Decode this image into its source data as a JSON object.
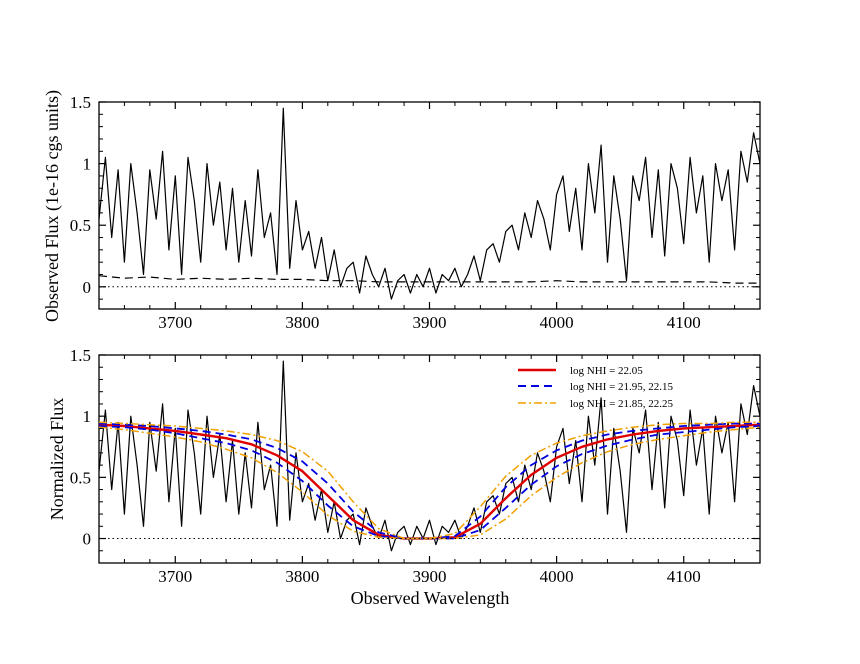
{
  "chart_data": [
    {
      "type": "line",
      "id": "top",
      "title": "",
      "xlabel": "",
      "ylabel": "Observed Flux (1e-16 cgs units)",
      "xlim": [
        3640,
        4160
      ],
      "ylim": [
        -0.18,
        1.5
      ],
      "xticks": [
        3700,
        3800,
        3900,
        4000,
        4100
      ],
      "xtick_labels": [
        "3700",
        "3800",
        "3900",
        "4000",
        "4100"
      ],
      "yticks": [
        0,
        0.5,
        1,
        1.5
      ],
      "ytick_labels": [
        "0",
        "0.5",
        "1",
        "1.5"
      ],
      "grid": false,
      "series": [
        {
          "name": "Observed flux",
          "style": "solid",
          "color": "#000000",
          "x": [
            3640,
            3645,
            3650,
            3655,
            3660,
            3665,
            3670,
            3675,
            3680,
            3685,
            3690,
            3695,
            3700,
            3705,
            3710,
            3715,
            3720,
            3725,
            3730,
            3735,
            3740,
            3745,
            3750,
            3755,
            3760,
            3765,
            3770,
            3775,
            3780,
            3785,
            3790,
            3795,
            3800,
            3805,
            3810,
            3815,
            3820,
            3825,
            3830,
            3835,
            3840,
            3845,
            3850,
            3855,
            3860,
            3865,
            3870,
            3875,
            3880,
            3885,
            3890,
            3895,
            3900,
            3905,
            3910,
            3915,
            3920,
            3925,
            3930,
            3935,
            3940,
            3945,
            3950,
            3955,
            3960,
            3965,
            3970,
            3975,
            3980,
            3985,
            3990,
            3995,
            4000,
            4005,
            4010,
            4015,
            4020,
            4025,
            4030,
            4035,
            4040,
            4045,
            4050,
            4055,
            4060,
            4065,
            4070,
            4075,
            4080,
            4085,
            4090,
            4095,
            4100,
            4105,
            4110,
            4115,
            4120,
            4125,
            4130,
            4135,
            4140,
            4145,
            4150,
            4155,
            4160
          ],
          "y": [
            0.55,
            1.05,
            0.4,
            0.95,
            0.2,
            1.0,
            0.6,
            0.1,
            0.95,
            0.55,
            1.1,
            0.3,
            0.9,
            0.1,
            1.05,
            0.7,
            0.2,
            1.0,
            0.5,
            0.85,
            0.3,
            0.8,
            0.2,
            0.7,
            0.25,
            0.95,
            0.4,
            0.6,
            0.1,
            1.45,
            0.15,
            0.7,
            0.3,
            0.45,
            0.15,
            0.4,
            0.05,
            0.3,
            0.0,
            0.15,
            0.2,
            -0.05,
            0.25,
            0.1,
            0.0,
            0.15,
            -0.1,
            0.05,
            0.1,
            -0.05,
            0.1,
            0.0,
            0.15,
            -0.05,
            0.1,
            0.05,
            0.15,
            0.0,
            0.1,
            0.25,
            0.05,
            0.3,
            0.35,
            0.2,
            0.45,
            0.5,
            0.3,
            0.6,
            0.4,
            0.7,
            0.55,
            0.3,
            0.75,
            0.9,
            0.45,
            0.8,
            0.3,
            1.0,
            0.6,
            1.15,
            0.2,
            0.9,
            0.55,
            0.05,
            0.9,
            0.7,
            1.05,
            0.4,
            0.95,
            0.25,
            1.0,
            0.8,
            0.35,
            1.05,
            0.6,
            0.9,
            0.2,
            1.0,
            0.7,
            0.95,
            0.3,
            1.1,
            0.85,
            1.25,
            1.0
          ]
        },
        {
          "name": "Error",
          "style": "dashed",
          "color": "#000000",
          "x": [
            3640,
            3660,
            3680,
            3700,
            3720,
            3740,
            3760,
            3780,
            3800,
            3820,
            3840,
            3860,
            3880,
            3900,
            3920,
            3940,
            3960,
            3980,
            4000,
            4020,
            4040,
            4060,
            4080,
            4100,
            4120,
            4140,
            4160
          ],
          "y": [
            0.09,
            0.07,
            0.08,
            0.06,
            0.07,
            0.06,
            0.07,
            0.06,
            0.06,
            0.05,
            0.05,
            0.04,
            0.04,
            0.04,
            0.04,
            0.04,
            0.04,
            0.04,
            0.05,
            0.04,
            0.04,
            0.04,
            0.04,
            0.04,
            0.04,
            0.03,
            0.03
          ]
        },
        {
          "name": "Zero level",
          "style": "dotted",
          "color": "#000000",
          "x": [
            3640,
            4160
          ],
          "y": [
            0,
            0
          ]
        }
      ]
    },
    {
      "type": "line",
      "id": "bottom",
      "title": "",
      "xlabel": "Observed Wavelength",
      "ylabel": "Normalized Flux",
      "xlim": [
        3640,
        4160
      ],
      "ylim": [
        -0.2,
        1.5
      ],
      "xticks": [
        3700,
        3800,
        3900,
        4000,
        4100
      ],
      "xtick_labels": [
        "3700",
        "3800",
        "3900",
        "4000",
        "4100"
      ],
      "yticks": [
        0,
        0.5,
        1,
        1.5
      ],
      "ytick_labels": [
        "0",
        "0.5",
        "1",
        "1.5"
      ],
      "grid": false,
      "legend_position": "top-right",
      "series": [
        {
          "name": "Normalized flux",
          "style": "solid",
          "color": "#000000",
          "x": [
            3640,
            3645,
            3650,
            3655,
            3660,
            3665,
            3670,
            3675,
            3680,
            3685,
            3690,
            3695,
            3700,
            3705,
            3710,
            3715,
            3720,
            3725,
            3730,
            3735,
            3740,
            3745,
            3750,
            3755,
            3760,
            3765,
            3770,
            3775,
            3780,
            3785,
            3790,
            3795,
            3800,
            3805,
            3810,
            3815,
            3820,
            3825,
            3830,
            3835,
            3840,
            3845,
            3850,
            3855,
            3860,
            3865,
            3870,
            3875,
            3880,
            3885,
            3890,
            3895,
            3900,
            3905,
            3910,
            3915,
            3920,
            3925,
            3930,
            3935,
            3940,
            3945,
            3950,
            3955,
            3960,
            3965,
            3970,
            3975,
            3980,
            3985,
            3990,
            3995,
            4000,
            4005,
            4010,
            4015,
            4020,
            4025,
            4030,
            4035,
            4040,
            4045,
            4050,
            4055,
            4060,
            4065,
            4070,
            4075,
            4080,
            4085,
            4090,
            4095,
            4100,
            4105,
            4110,
            4115,
            4120,
            4125,
            4130,
            4135,
            4140,
            4145,
            4150,
            4155,
            4160
          ],
          "y": [
            0.55,
            1.05,
            0.4,
            0.95,
            0.2,
            1.0,
            0.6,
            0.1,
            0.95,
            0.55,
            1.1,
            0.3,
            0.9,
            0.1,
            1.05,
            0.7,
            0.2,
            1.0,
            0.5,
            0.85,
            0.3,
            0.8,
            0.2,
            0.7,
            0.25,
            0.95,
            0.4,
            0.6,
            0.1,
            1.45,
            0.15,
            0.7,
            0.3,
            0.45,
            0.15,
            0.4,
            0.05,
            0.3,
            0.0,
            0.15,
            0.2,
            -0.05,
            0.25,
            0.1,
            0.0,
            0.15,
            -0.1,
            0.05,
            0.1,
            -0.05,
            0.1,
            0.0,
            0.15,
            -0.05,
            0.1,
            0.05,
            0.15,
            0.0,
            0.1,
            0.25,
            0.05,
            0.3,
            0.35,
            0.2,
            0.45,
            0.5,
            0.3,
            0.6,
            0.4,
            0.7,
            0.55,
            0.3,
            0.75,
            0.9,
            0.45,
            0.8,
            0.3,
            1.0,
            0.6,
            1.15,
            0.2,
            0.9,
            0.55,
            0.05,
            0.9,
            0.7,
            1.05,
            0.4,
            0.95,
            0.25,
            1.0,
            0.8,
            0.35,
            1.05,
            0.6,
            0.9,
            0.2,
            1.0,
            0.7,
            0.95,
            0.3,
            1.1,
            0.85,
            1.25,
            1.0
          ]
        },
        {
          "name": "log NHI = 22.05",
          "style": "solid",
          "color": "#e00000",
          "legend": true,
          "x": [
            3640,
            3660,
            3680,
            3700,
            3720,
            3740,
            3760,
            3780,
            3800,
            3820,
            3840,
            3860,
            3880,
            3900,
            3920,
            3940,
            3960,
            3980,
            4000,
            4020,
            4040,
            4060,
            4080,
            4100,
            4120,
            4140,
            4160
          ],
          "y": [
            0.93,
            0.92,
            0.9,
            0.88,
            0.85,
            0.82,
            0.77,
            0.68,
            0.55,
            0.35,
            0.15,
            0.03,
            0.0,
            0.0,
            0.01,
            0.12,
            0.33,
            0.52,
            0.66,
            0.75,
            0.81,
            0.85,
            0.88,
            0.9,
            0.91,
            0.92,
            0.93
          ]
        },
        {
          "name": "log NHI = 21.95, 22.15",
          "style": "dashed",
          "color": "#0000e0",
          "legend": true,
          "x": [
            3640,
            3660,
            3680,
            3700,
            3720,
            3740,
            3760,
            3780,
            3800,
            3820,
            3840,
            3860,
            3880,
            3900,
            3920,
            3940,
            3960,
            3980,
            4000,
            4020,
            4040,
            4060,
            4080,
            4100,
            4120,
            4140,
            4160
          ],
          "y": [
            0.94,
            0.93,
            0.92,
            0.9,
            0.88,
            0.85,
            0.81,
            0.74,
            0.63,
            0.45,
            0.22,
            0.05,
            0.0,
            0.0,
            0.02,
            0.18,
            0.42,
            0.6,
            0.72,
            0.8,
            0.85,
            0.88,
            0.9,
            0.92,
            0.93,
            0.94,
            0.94
          ]
        },
        {
          "name": "log NHI = 21.95, 22.15 (upper)",
          "style": "dashed",
          "color": "#0000e0",
          "x": [
            3640,
            3660,
            3680,
            3700,
            3720,
            3740,
            3760,
            3780,
            3800,
            3820,
            3840,
            3860,
            3880,
            3900,
            3920,
            3940,
            3960,
            3980,
            4000,
            4020,
            4040,
            4060,
            4080,
            4100,
            4120,
            4140,
            4160
          ],
          "y": [
            0.92,
            0.91,
            0.89,
            0.86,
            0.82,
            0.78,
            0.72,
            0.62,
            0.47,
            0.27,
            0.1,
            0.02,
            0.0,
            0.0,
            0.0,
            0.07,
            0.25,
            0.44,
            0.59,
            0.69,
            0.76,
            0.81,
            0.85,
            0.87,
            0.89,
            0.91,
            0.92
          ]
        },
        {
          "name": "log NHI = 21.85, 22.25",
          "style": "dashdot",
          "color": "#f0a000",
          "legend": true,
          "x": [
            3640,
            3660,
            3680,
            3700,
            3720,
            3740,
            3760,
            3780,
            3800,
            3820,
            3840,
            3860,
            3880,
            3900,
            3920,
            3940,
            3960,
            3980,
            4000,
            4020,
            4040,
            4060,
            4080,
            4100,
            4120,
            4140,
            4160
          ],
          "y": [
            0.95,
            0.94,
            0.93,
            0.92,
            0.9,
            0.88,
            0.85,
            0.8,
            0.71,
            0.55,
            0.3,
            0.08,
            0.0,
            0.0,
            0.04,
            0.26,
            0.51,
            0.68,
            0.78,
            0.84,
            0.88,
            0.91,
            0.93,
            0.94,
            0.94,
            0.95,
            0.95
          ]
        },
        {
          "name": "log NHI = 21.85, 22.25 (upper)",
          "style": "dashdot",
          "color": "#f0a000",
          "x": [
            3640,
            3660,
            3680,
            3700,
            3720,
            3740,
            3760,
            3780,
            3800,
            3820,
            3840,
            3860,
            3880,
            3900,
            3920,
            3940,
            3960,
            3980,
            4000,
            4020,
            4040,
            4060,
            4080,
            4100,
            4120,
            4140,
            4160
          ],
          "y": [
            0.91,
            0.89,
            0.86,
            0.83,
            0.79,
            0.73,
            0.66,
            0.54,
            0.38,
            0.19,
            0.06,
            0.01,
            0.0,
            0.0,
            0.0,
            0.03,
            0.16,
            0.35,
            0.5,
            0.62,
            0.71,
            0.77,
            0.81,
            0.84,
            0.87,
            0.89,
            0.91
          ]
        },
        {
          "name": "Zero level",
          "style": "dotted",
          "color": "#000000",
          "x": [
            3640,
            4160
          ],
          "y": [
            0,
            0
          ]
        }
      ]
    }
  ]
}
